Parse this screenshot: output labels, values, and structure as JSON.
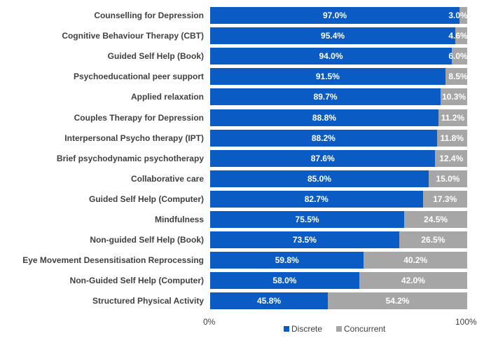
{
  "chart_data": {
    "type": "bar",
    "orientation": "horizontal",
    "stacked": true,
    "percent": true,
    "categories": [
      "Counselling for Depression",
      "Cognitive Behaviour Therapy (CBT)",
      "Guided Self Help (Book)",
      "Psychoeducational peer support",
      "Applied relaxation",
      "Couples Therapy for Depression",
      "Interpersonal Psycho therapy (IPT)",
      "Brief psychodynamic psychotherapy",
      "Collaborative care",
      "Guided Self Help (Computer)",
      "Mindfulness",
      "Non-guided Self Help (Book)",
      "Eye Movement Desensitisation Reprocessing",
      "Non-Guided Self Help (Computer)",
      "Structured Physical Activity"
    ],
    "series": [
      {
        "name": "Discrete",
        "color": "#0a5cc4",
        "values": [
          97.0,
          95.4,
          94.0,
          91.5,
          89.7,
          88.8,
          88.2,
          87.6,
          85.0,
          82.7,
          75.5,
          73.5,
          59.8,
          58.0,
          45.8
        ],
        "labels": [
          "97.0%",
          "95.4%",
          "94.0%",
          "91.5%",
          "89.7%",
          "88.8%",
          "88.2%",
          "87.6%",
          "85.0%",
          "82.7%",
          "75.5%",
          "73.5%",
          "59.8%",
          "58.0%",
          "45.8%"
        ]
      },
      {
        "name": "Concurrent",
        "color": "#a6a6a6",
        "values": [
          3.0,
          4.6,
          6.0,
          8.5,
          10.3,
          11.2,
          11.8,
          12.4,
          15.0,
          17.3,
          24.5,
          26.5,
          40.2,
          42.0,
          54.2
        ],
        "labels": [
          "3.0%",
          "4.6%",
          "6.0%",
          "8.5%",
          "10.3%",
          "11.2%",
          "11.8%",
          "12.4%",
          "15.0%",
          "17.3%",
          "24.5%",
          "26.5%",
          "40.2%",
          "42.0%",
          "54.2%"
        ]
      }
    ],
    "x_ticks": [
      "0%",
      "100%"
    ],
    "xlim": [
      0,
      100
    ],
    "legend_position": "bottom",
    "grid": false
  }
}
